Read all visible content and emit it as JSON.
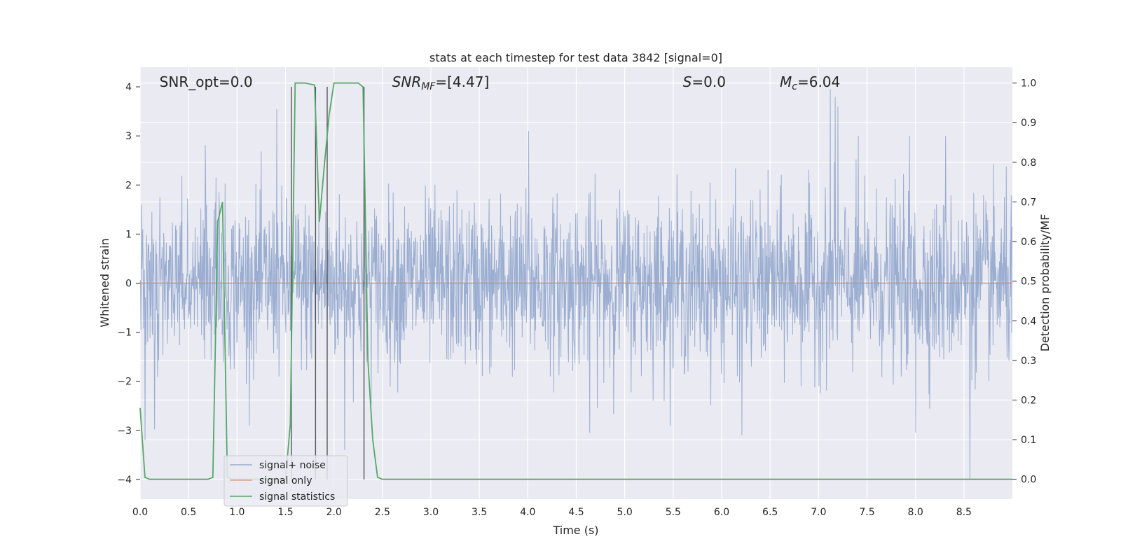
{
  "chart_data": {
    "type": "line",
    "title": "stats at each timestep for test data 3842 [signal=0]",
    "xlabel": "Time (s)",
    "ylabel_left": "Whitened strain",
    "ylabel_right": "Detection probability/MF",
    "xlim": [
      0.0,
      9.0
    ],
    "ylim_left": [
      -4.4,
      4.4
    ],
    "ylim_right": [
      -0.05,
      1.04
    ],
    "x_ticks": [
      "0.0",
      "0.5",
      "1.0",
      "1.5",
      "2.0",
      "2.5",
      "3.0",
      "3.5",
      "4.0",
      "4.5",
      "5.0",
      "5.5",
      "6.0",
      "6.5",
      "7.0",
      "7.5",
      "8.0",
      "8.5"
    ],
    "x_tick_values": [
      0,
      0.5,
      1.0,
      1.5,
      2.0,
      2.5,
      3.0,
      3.5,
      4.0,
      4.5,
      5.0,
      5.5,
      6.0,
      6.5,
      7.0,
      7.5,
      8.0,
      8.5
    ],
    "y_left_ticks": [
      "−4",
      "−3",
      "−2",
      "−1",
      "0",
      "1",
      "2",
      "3",
      "4"
    ],
    "y_left_tick_values": [
      -4,
      -3,
      -2,
      -1,
      0,
      1,
      2,
      3,
      4
    ],
    "y_right_ticks": [
      "0.0",
      "0.1",
      "0.2",
      "0.3",
      "0.4",
      "0.5",
      "0.6",
      "0.7",
      "0.8",
      "0.9",
      "1.0"
    ],
    "y_right_tick_values": [
      0.0,
      0.1,
      0.2,
      0.3,
      0.4,
      0.5,
      0.6,
      0.7,
      0.8,
      0.9,
      1.0
    ],
    "grid": true,
    "legend_position": "lower-left",
    "annotations": [
      {
        "id": "snr-opt",
        "parts": [
          {
            "t": "SNR_opt=0.0",
            "style": "normal"
          }
        ],
        "x": 0.2
      },
      {
        "id": "snr-mf",
        "parts": [
          {
            "t": "SNR",
            "style": "italic"
          },
          {
            "t": "MF",
            "style": "italic-sub"
          },
          {
            "t": "=[4.47]",
            "style": "normal"
          }
        ],
        "x": 2.6
      },
      {
        "id": "s",
        "parts": [
          {
            "t": "S",
            "style": "italic"
          },
          {
            "t": "=0.0",
            "style": "normal"
          }
        ],
        "x": 5.6
      },
      {
        "id": "mc",
        "parts": [
          {
            "t": "M",
            "style": "italic"
          },
          {
            "t": "c",
            "style": "italic-sub"
          },
          {
            "t": "=6.04",
            "style": "normal"
          }
        ],
        "x": 6.6
      }
    ],
    "series": [
      {
        "name": "signal+ noise",
        "color": "#4c72b0",
        "style": "noise",
        "n_samples": 2300,
        "std": 0.85,
        "seed": 3842,
        "spikes": [
          {
            "x": 1.41,
            "y": 3.55
          },
          {
            "x": 4.01,
            "y": 3.1
          },
          {
            "x": 7.12,
            "y": 3.95
          },
          {
            "x": 7.17,
            "y": 3.8
          },
          {
            "x": 7.2,
            "y": 3.6
          },
          {
            "x": 8.56,
            "y": -4.0
          },
          {
            "x": 2.11,
            "y": -3.4
          },
          {
            "x": 4.64,
            "y": -3.05
          },
          {
            "x": 6.21,
            "y": -3.1
          },
          {
            "x": 0.05,
            "y": -3.2
          },
          {
            "x": 0.15,
            "y": -2.98
          },
          {
            "x": 8.0,
            "y": -3.05
          },
          {
            "x": 7.94,
            "y": 3.0
          },
          {
            "x": 8.31,
            "y": 3.0
          },
          {
            "x": 7.41,
            "y": 3.0
          }
        ]
      },
      {
        "name": "signal only",
        "color": "#dd8452",
        "x": [
          0,
          9
        ],
        "y": [
          0,
          0
        ]
      },
      {
        "name": "signal statistics",
        "color": "#55a868",
        "axis": "right",
        "x": [
          0.0,
          0.05,
          0.1,
          0.7,
          0.75,
          0.8,
          0.85,
          0.9,
          0.95,
          1.5,
          1.55,
          1.6,
          1.65,
          1.7,
          1.8,
          1.85,
          1.9,
          1.95,
          2.0,
          2.25,
          2.3,
          2.35,
          2.4,
          2.45,
          2.5,
          9.0
        ],
        "y": [
          0.18,
          0.005,
          0.0,
          0.0,
          0.005,
          0.65,
          0.7,
          0.005,
          0.0,
          0.0,
          0.14,
          1.0,
          1.0,
          1.0,
          0.995,
          0.65,
          0.79,
          0.92,
          1.0,
          1.0,
          0.99,
          0.3,
          0.1,
          0.005,
          0.0,
          0.0
        ]
      }
    ],
    "vlines": [
      {
        "x": 1.56,
        "y1": -4.0,
        "y2": 4.0
      },
      {
        "x": 1.81,
        "y1": -4.0,
        "y2": 4.0
      },
      {
        "x": 1.93,
        "y1": -4.0,
        "y2": 4.0
      },
      {
        "x": 2.31,
        "y1": -4.0,
        "y2": 4.0
      }
    ]
  }
}
